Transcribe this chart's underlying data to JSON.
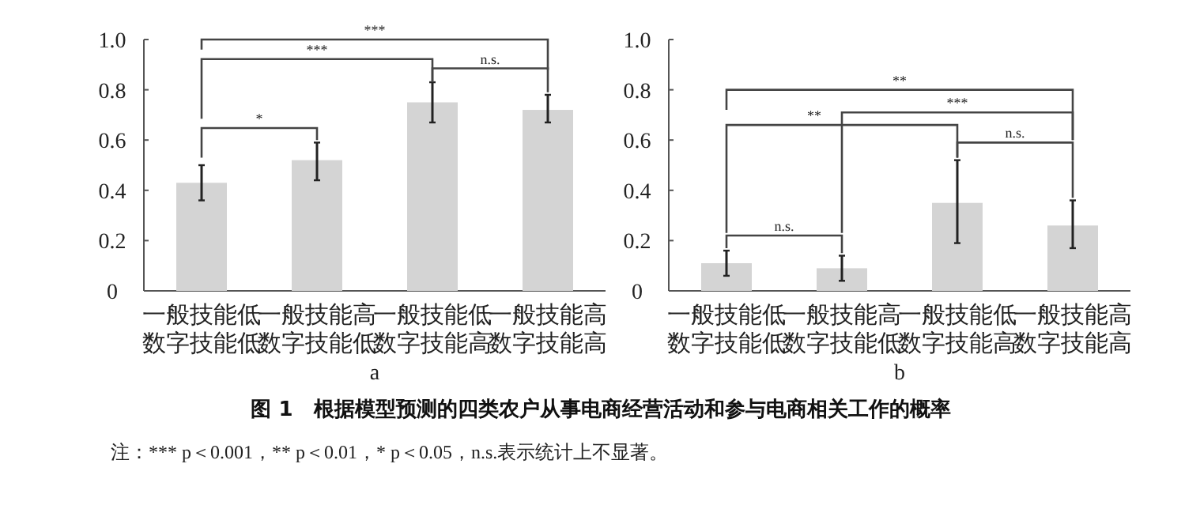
{
  "chart_data": [
    {
      "type": "bar",
      "xlabel": "a",
      "categories": [
        "一般技能低数字技能低",
        "一般技能高数字技能低",
        "一般技能低数字技能高",
        "一般技能高数字技能高"
      ],
      "values": [
        0.43,
        0.52,
        0.75,
        0.72
      ],
      "errors": [
        [
          0.36,
          0.5
        ],
        [
          0.44,
          0.59
        ],
        [
          0.67,
          0.83
        ],
        [
          0.67,
          0.78
        ]
      ],
      "color": "#d4d4d4",
      "ylim": [
        0,
        1
      ],
      "yticks": [
        0,
        0.2,
        0.4,
        0.6,
        0.8,
        {
          "value": 1,
          "label": "1.0"
        }
      ],
      "annotations": [
        "***",
        "***",
        "n.s.",
        "*"
      ]
    },
    {
      "type": "bar",
      "xlabel": "b",
      "categories": [
        "一般技能低数字技能低",
        "一般技能高数字技能低",
        "一般技能低数字技能高",
        "一般技能高数字技能高"
      ],
      "values": [
        0.11,
        0.09,
        0.35,
        0.26
      ],
      "errors": [
        [
          0.06,
          0.16
        ],
        [
          0.04,
          0.14
        ],
        [
          0.19,
          0.52
        ],
        [
          0.17,
          0.36
        ]
      ],
      "color": "#d4d4d4",
      "ylim": [
        0,
        1
      ],
      "yticks": [
        0,
        0.2,
        0.4,
        0.6,
        0.8,
        {
          "value": 1,
          "label": "1.0"
        }
      ],
      "annotations": [
        "**",
        "***",
        "**",
        "n.s.",
        "n.s."
      ]
    },
    {
      "type": "other",
      "title": "图 1　根据模型预测的四类农户从事电商经营活动和参与电商相关工作的概率",
      "annotations": [
        "注：*** p＜0.001，** p＜0.01，* p＜0.05，n.s.表示统计上不显著。"
      ]
    }
  ]
}
